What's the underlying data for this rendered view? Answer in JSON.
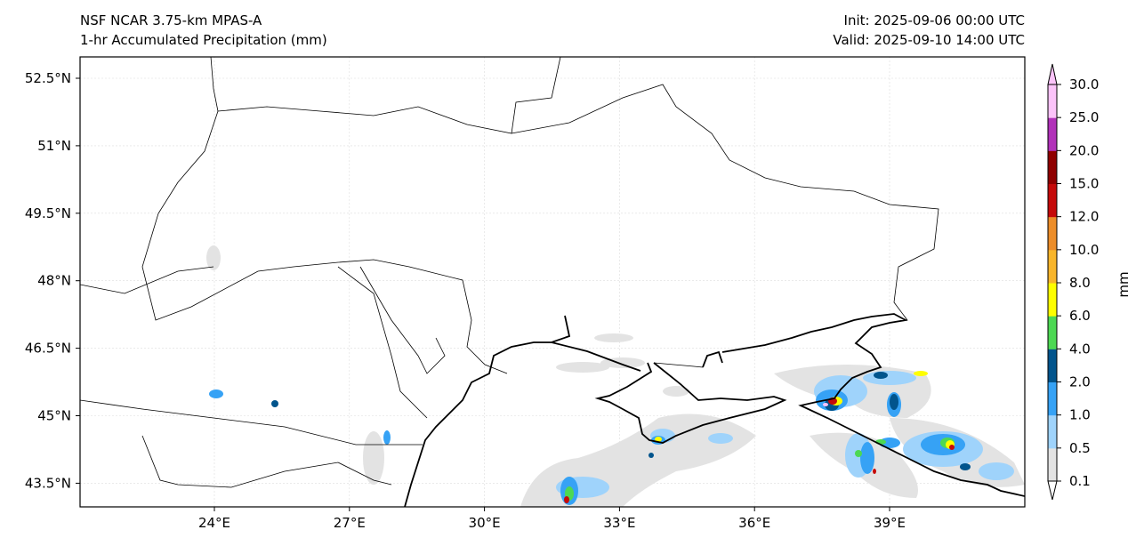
{
  "header": {
    "model": "NSF NCAR 3.75-km MPAS-A",
    "field": "1-hr Accumulated Precipitation (mm)",
    "init": "Init: 2025-09-06 00:00 UTC",
    "valid": "Valid: 2025-09-10 14:00 UTC"
  },
  "axes": {
    "lon_ticks": [
      "24°E",
      "27°E",
      "30°E",
      "33°E",
      "36°E",
      "39°E"
    ],
    "lon_values": [
      24,
      27,
      30,
      33,
      36,
      39
    ],
    "lat_ticks": [
      "52.5°N",
      "51°N",
      "49.5°N",
      "48°N",
      "46.5°N",
      "45°N",
      "43.5°N"
    ],
    "lat_values": [
      52.5,
      51,
      49.5,
      48,
      46.5,
      45,
      43.5
    ]
  },
  "colorbar": {
    "label": "mm",
    "levels": [
      "0.1",
      "0.5",
      "1.0",
      "2.0",
      "4.0",
      "6.0",
      "8.0",
      "10.0",
      "12.0",
      "15.0",
      "20.0",
      "25.0",
      "30.0"
    ],
    "colors": [
      "#e3e3e3",
      "#9fd3fb",
      "#36a2f5",
      "#01548c",
      "#4dd853",
      "#fefe00",
      "#f8b52b",
      "#ec8d29",
      "#c50a0a",
      "#8f0000",
      "#b131b9",
      "#fbc3f9"
    ]
  }
}
